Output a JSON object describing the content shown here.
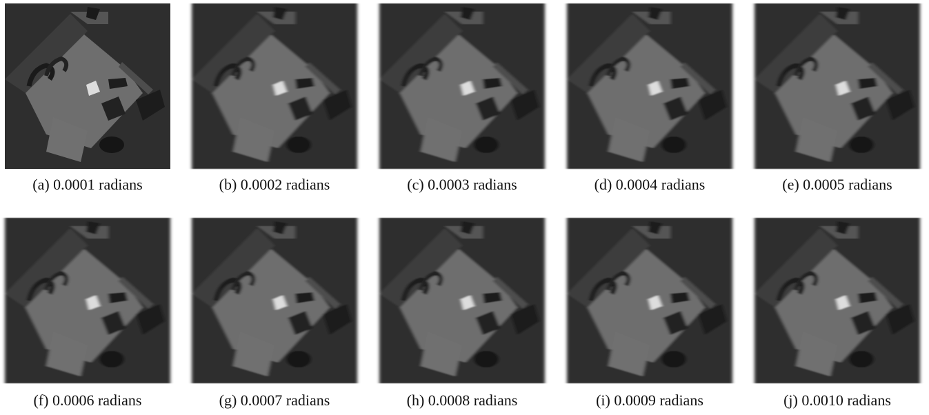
{
  "figure": {
    "panels": [
      {
        "caption": "(a) 0.0001 radians"
      },
      {
        "caption": "(b) 0.0002 radians"
      },
      {
        "caption": "(c) 0.0003 radians"
      },
      {
        "caption": "(d) 0.0004 radians"
      },
      {
        "caption": "(e) 0.0005 radians"
      },
      {
        "caption": "(f) 0.0006 radians"
      },
      {
        "caption": "(g) 0.0007 radians"
      },
      {
        "caption": "(h) 0.0008 radians"
      },
      {
        "caption": "(i) 0.0009 radians"
      },
      {
        "caption": "(j) 0.0010 radians"
      }
    ]
  }
}
